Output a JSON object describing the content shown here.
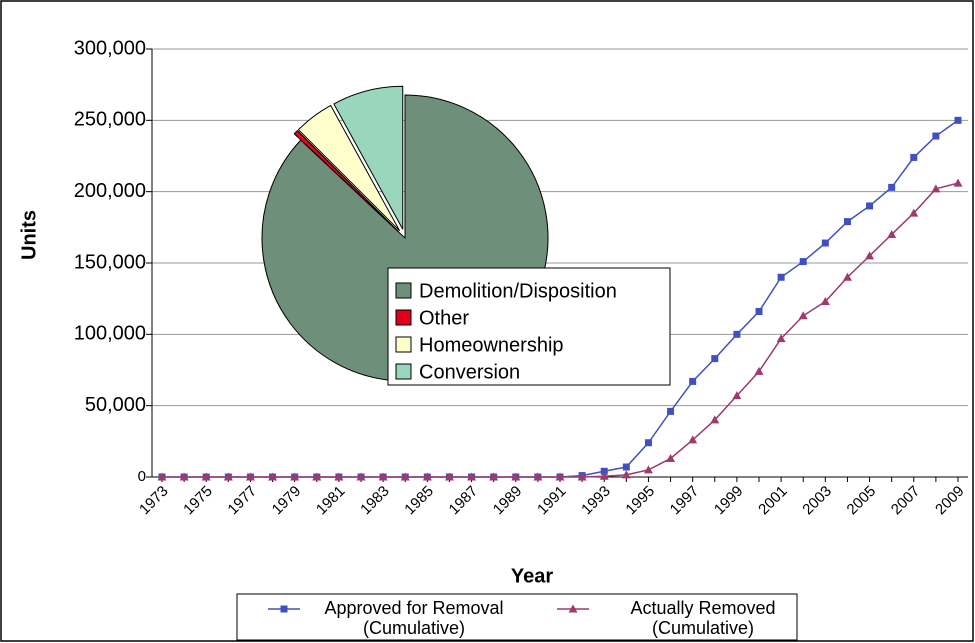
{
  "chart_data": [
    {
      "type": "line",
      "x_label": "Year",
      "y_label": "Units",
      "categories": [
        "1973",
        null,
        "1975",
        null,
        "1977",
        null,
        "1979",
        null,
        "1981",
        null,
        "1983",
        null,
        "1985",
        null,
        "1987",
        null,
        "1989",
        null,
        "1991",
        null,
        "1993",
        null,
        "1995",
        null,
        "1997",
        null,
        "1999",
        null,
        "2001",
        null,
        "2003",
        null,
        "2005",
        null,
        "2007",
        null,
        "2009"
      ],
      "series": [
        {
          "name": "Approved for Removal (Cumulative)",
          "color": "#3f51c0",
          "marker": "square",
          "values": [
            0,
            0,
            0,
            0,
            0,
            0,
            0,
            0,
            0,
            0,
            0,
            0,
            0,
            0,
            0,
            0,
            0,
            0,
            0,
            1000,
            4000,
            7000,
            24000,
            46000,
            67000,
            83000,
            100000,
            116000,
            140000,
            151000,
            164000,
            179000,
            190000,
            203000,
            224000,
            239000,
            250000
          ]
        },
        {
          "name": "Actually Removed (Cumulative)",
          "color": "#9e3a6e",
          "marker": "triangle",
          "values": [
            0,
            0,
            0,
            0,
            0,
            0,
            0,
            0,
            0,
            0,
            0,
            0,
            0,
            0,
            0,
            0,
            0,
            0,
            0,
            0,
            500,
            1500,
            5000,
            13000,
            26000,
            40000,
            57000,
            74000,
            97000,
            113000,
            123000,
            140000,
            155000,
            170000,
            185000,
            202000,
            206000
          ]
        }
      ],
      "ylim": [
        0,
        300000
      ],
      "yticks": [
        0,
        {
          "value": 50000,
          "label": "50,000"
        },
        {
          "value": 100000,
          "label": "100,000"
        },
        {
          "value": 150000,
          "label": "150,000"
        },
        {
          "value": 200000,
          "label": "200,000"
        },
        {
          "value": 250000,
          "label": "250,000"
        },
        {
          "value": 300000,
          "label": "300,000"
        }
      ],
      "grid": true,
      "legend": "bottom"
    },
    {
      "type": "pie",
      "categories": [
        "Demolition/Disposition",
        "Other",
        "Homeownership",
        "Conversion"
      ],
      "values": [
        87,
        0.5,
        4.5,
        8
      ],
      "colors": [
        "#6e8f79",
        "#e0001b",
        "#ffffcc",
        "#99d6bb"
      ]
    }
  ]
}
